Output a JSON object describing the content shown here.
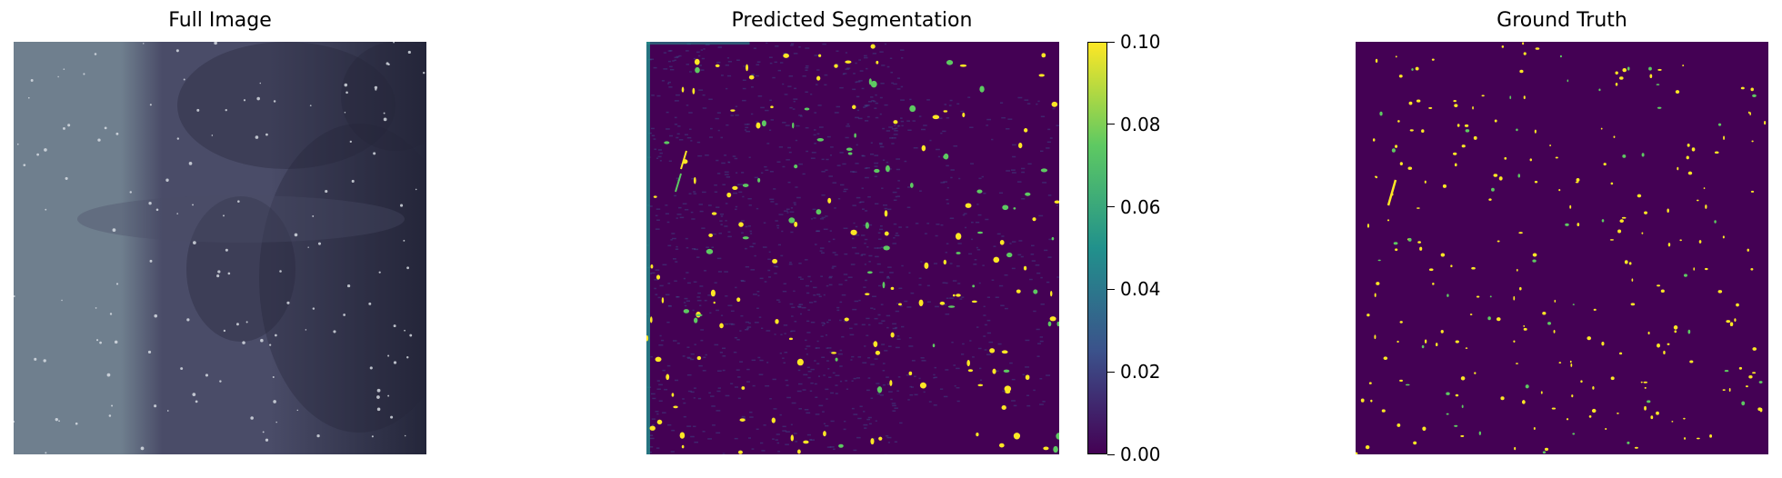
{
  "chart_data": [
    {
      "type": "heatmap",
      "title": "Full Image",
      "colormap": "grayscale-blue",
      "colors": {
        "light": "#6f7f8e",
        "mid": "#4a4c68",
        "dark": "#24263a",
        "speck": "#dfe3ea"
      }
    },
    {
      "type": "heatmap",
      "title": "Predicted Segmentation",
      "colormap": "viridis",
      "colorbar": {
        "range": [
          0.0,
          0.1
        ],
        "ticks": [
          "0.00",
          "0.02",
          "0.04",
          "0.06",
          "0.08",
          "0.10"
        ]
      },
      "colors": {
        "low": "#440154",
        "mid": "#21918c",
        "high": "#fde725"
      }
    },
    {
      "type": "heatmap",
      "title": "Ground Truth",
      "colormap": "viridis",
      "colors": {
        "low": "#440154",
        "high": "#fde725"
      }
    }
  ]
}
